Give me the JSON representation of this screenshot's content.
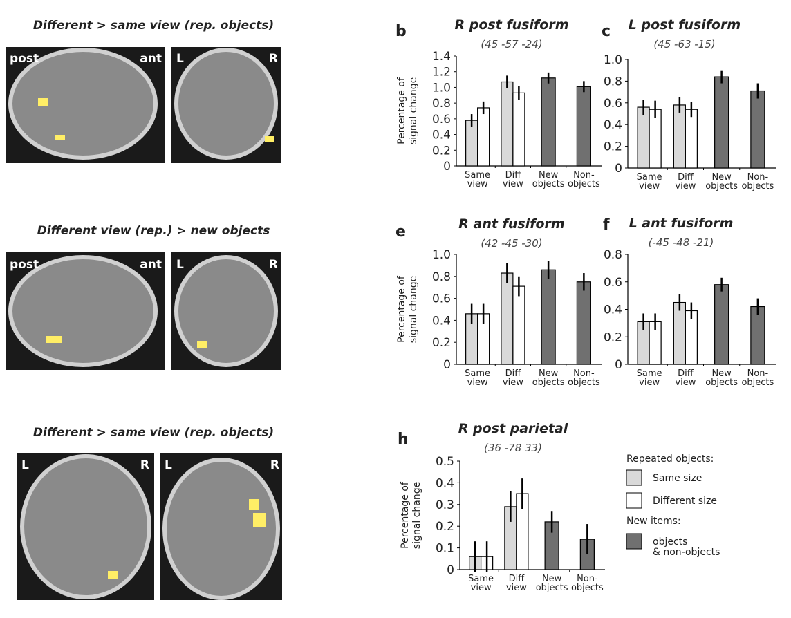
{
  "images": [
    {
      "title": "Different > same view (rep. objects)",
      "labels": [
        "post",
        "ant",
        "L",
        "R"
      ]
    },
    {
      "title": "Different view (rep.) > new objects",
      "labels": [
        "post",
        "ant",
        "L",
        "R"
      ]
    },
    {
      "title": "Different > same view (rep. objects)",
      "labels": [
        "L",
        "R",
        "L",
        "R"
      ]
    }
  ],
  "chart_data": [
    {
      "type": "bar",
      "panel": "b",
      "title": "R post fusiform",
      "subtitle": "(45 -57 -24)",
      "y_label": "Percentage of\nsignal change",
      "categories": [
        "Same\nview",
        "Diff\nview",
        "New\nobjects",
        "Non-\nobjects"
      ],
      "series": [
        {
          "color": "#d9d9d9",
          "values": [
            0.58,
            1.07,
            null,
            null
          ],
          "errors": [
            0.08,
            0.08,
            null,
            null
          ]
        },
        {
          "color": "#ffffff",
          "values": [
            0.74,
            0.93,
            null,
            null
          ],
          "errors": [
            0.08,
            0.09,
            null,
            null
          ]
        },
        {
          "color": "#707070",
          "values": [
            null,
            null,
            1.12,
            1.01
          ],
          "errors": [
            null,
            null,
            0.07,
            0.07
          ]
        }
      ],
      "ylim": [
        0,
        1.4
      ],
      "yticks": [
        0,
        0.2,
        0.4,
        0.6,
        0.8,
        {
          "value": 1,
          "label": "1.0"
        },
        1.2,
        1.4
      ]
    },
    {
      "type": "bar",
      "panel": "c",
      "title": "L post fusiform",
      "subtitle": "(45 -63 -15)",
      "categories": [
        "Same\nview",
        "Diff\nview",
        "New\nobjects",
        "Non-\nobjects"
      ],
      "series": [
        {
          "color": "#d9d9d9",
          "values": [
            0.56,
            0.58,
            null,
            null
          ],
          "errors": [
            0.07,
            0.07,
            null,
            null
          ]
        },
        {
          "color": "#ffffff",
          "values": [
            0.54,
            0.54,
            null,
            null
          ],
          "errors": [
            0.08,
            0.07,
            null,
            null
          ]
        },
        {
          "color": "#707070",
          "values": [
            null,
            null,
            0.84,
            0.71
          ],
          "errors": [
            null,
            null,
            0.06,
            0.07
          ]
        }
      ],
      "ylim": [
        0,
        1
      ],
      "yticks": [
        0,
        0.2,
        0.4,
        0.6,
        0.8,
        {
          "value": 1,
          "label": "1.0"
        }
      ]
    },
    {
      "type": "bar",
      "panel": "e",
      "title": "R ant fusiform",
      "subtitle": "(42 -45 -30)",
      "y_label": "Percentage of\nsignal change",
      "categories": [
        "Same\nview",
        "Diff\nview",
        "New\nobjects",
        "Non-\nobjects"
      ],
      "series": [
        {
          "color": "#d9d9d9",
          "values": [
            0.46,
            0.83,
            null,
            null
          ],
          "errors": [
            0.09,
            0.09,
            null,
            null
          ]
        },
        {
          "color": "#ffffff",
          "values": [
            0.46,
            0.71,
            null,
            null
          ],
          "errors": [
            0.09,
            0.09,
            null,
            null
          ]
        },
        {
          "color": "#707070",
          "values": [
            null,
            null,
            0.86,
            0.75
          ],
          "errors": [
            null,
            null,
            0.08,
            0.08
          ]
        }
      ],
      "ylim": [
        0,
        1
      ],
      "yticks": [
        0,
        0.2,
        0.4,
        0.6,
        0.8,
        {
          "value": 1,
          "label": "1.0"
        }
      ]
    },
    {
      "type": "bar",
      "panel": "f",
      "title": "L ant fusiform",
      "subtitle": "(-45 -48 -21)",
      "categories": [
        "Same\nview",
        "Diff\nview",
        "New\nobjects",
        "Non-\nobjects"
      ],
      "series": [
        {
          "color": "#d9d9d9",
          "values": [
            0.31,
            0.45,
            null,
            null
          ],
          "errors": [
            0.06,
            0.06,
            null,
            null
          ]
        },
        {
          "color": "#ffffff",
          "values": [
            0.31,
            0.39,
            null,
            null
          ],
          "errors": [
            0.06,
            0.06,
            null,
            null
          ]
        },
        {
          "color": "#707070",
          "values": [
            null,
            null,
            0.58,
            0.42
          ],
          "errors": [
            null,
            null,
            0.05,
            0.06
          ]
        }
      ],
      "ylim": [
        0,
        0.8
      ],
      "yticks": [
        0,
        0.2,
        0.4,
        0.6,
        0.8
      ]
    },
    {
      "type": "bar",
      "panel": "h",
      "title": "R post parietal",
      "subtitle": "(36 -78 33)",
      "y_label": "Percentage of\nsignal change",
      "categories": [
        "Same\nview",
        "Diff\nview",
        "New\nobjects",
        "Non-\nobjects"
      ],
      "legend_groups": [
        "Repeated objects:",
        "New items:"
      ],
      "series": [
        {
          "name": "Same size",
          "color": "#d9d9d9",
          "values": [
            0.06,
            0.29,
            null,
            null
          ],
          "errors": [
            0.07,
            0.07,
            null,
            null
          ]
        },
        {
          "name": "Different size",
          "color": "#ffffff",
          "values": [
            0.06,
            0.35,
            null,
            null
          ],
          "errors": [
            0.07,
            0.07,
            null,
            null
          ]
        },
        {
          "name": "objects\n& non-objects",
          "color": "#707070",
          "values": [
            null,
            null,
            0.22,
            0.14
          ],
          "errors": [
            null,
            null,
            0.05,
            0.07
          ]
        }
      ],
      "ylim": [
        0,
        0.5
      ],
      "yticks": [
        0,
        0.1,
        0.2,
        0.3,
        0.4,
        0.5
      ]
    }
  ]
}
